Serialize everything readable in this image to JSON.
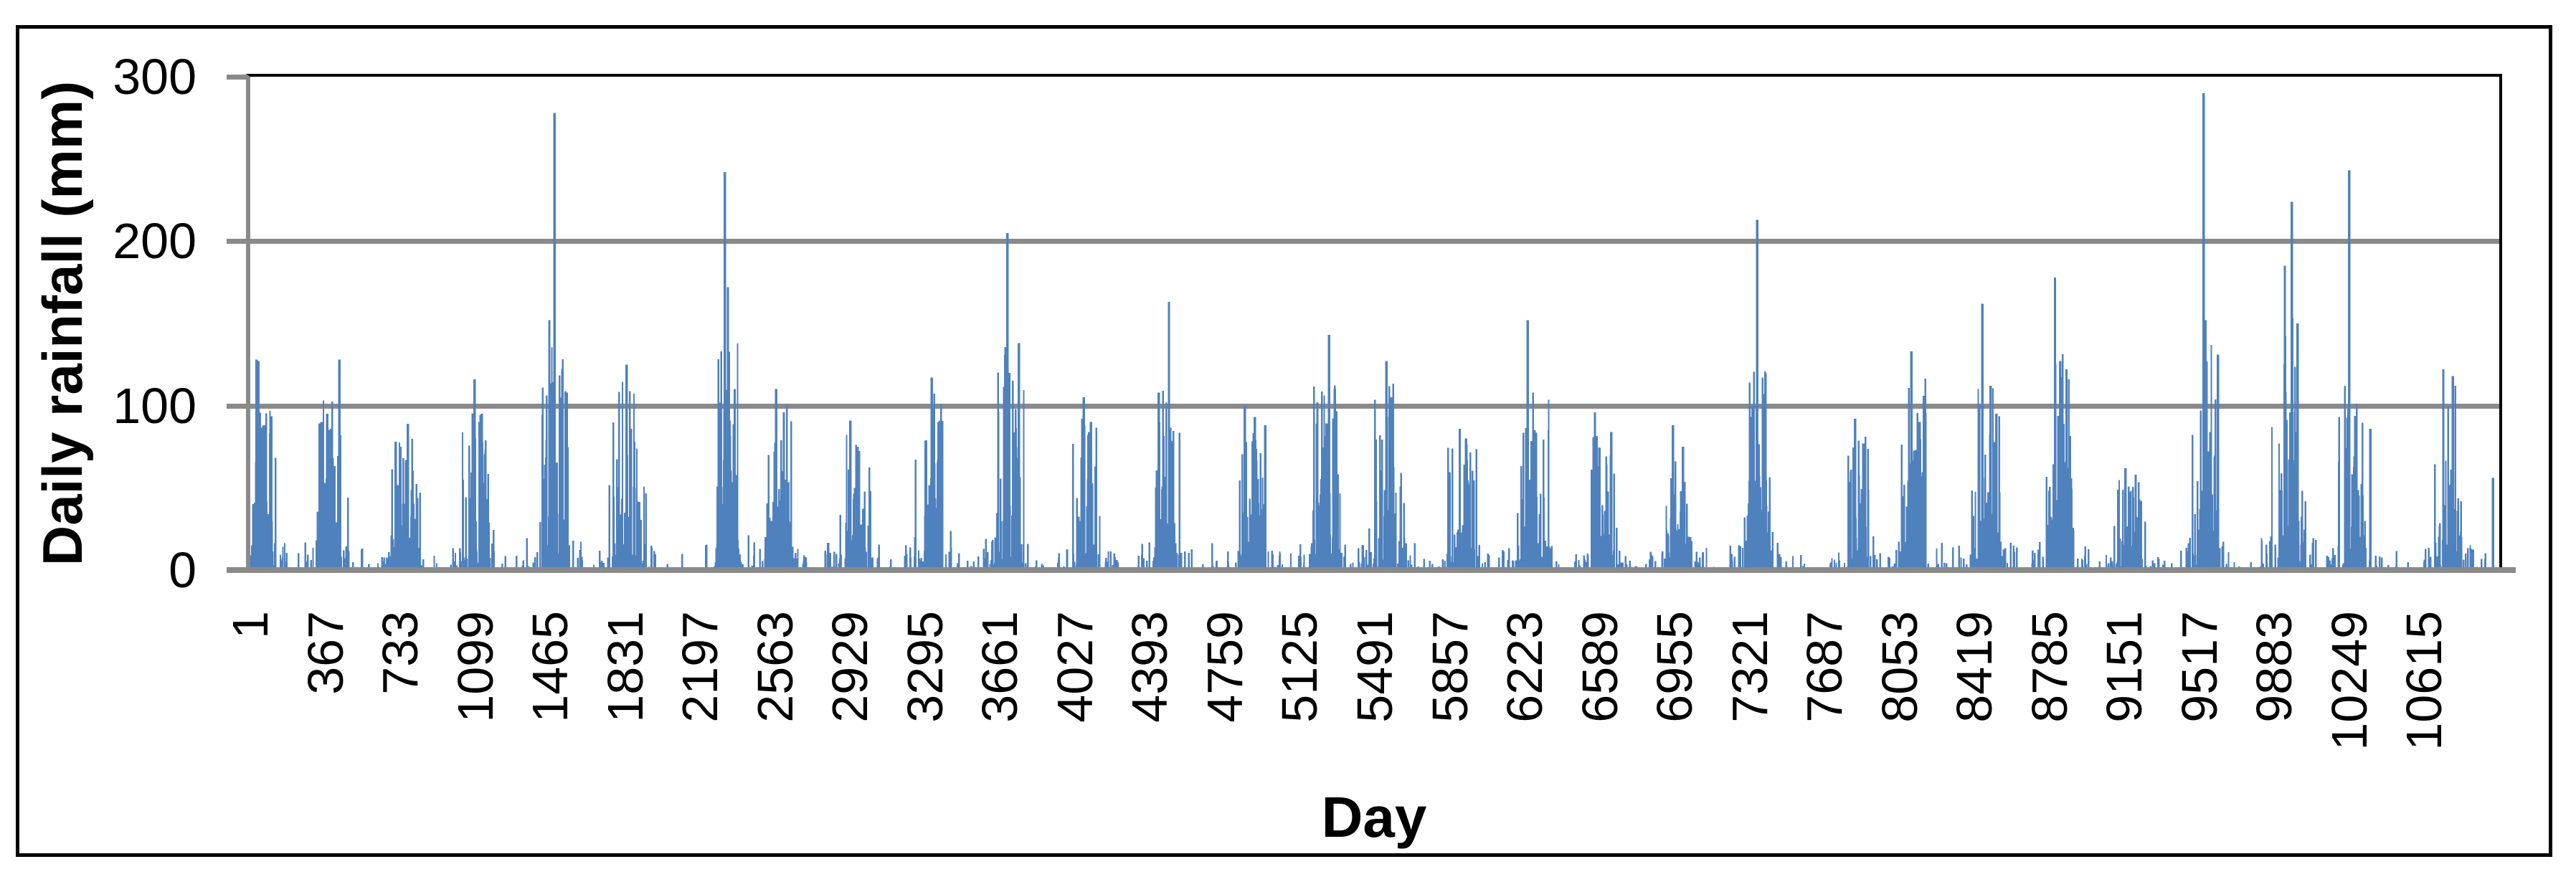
{
  "chart_data": {
    "type": "bar",
    "title": "",
    "xlabel": "Day",
    "ylabel": "Daily rainfall (mm)",
    "series_name": "Daily rainfall",
    "x_range": [
      1,
      10980
    ],
    "ylim": [
      0,
      300
    ],
    "yticks": [
      0,
      100,
      200,
      300
    ],
    "xticks": [
      1,
      367,
      733,
      1099,
      1465,
      1831,
      2197,
      2563,
      2929,
      3295,
      3661,
      4027,
      4393,
      4759,
      5125,
      5491,
      5857,
      6223,
      6589,
      6955,
      7321,
      7687,
      8053,
      8419,
      8785,
      9151,
      9517,
      9883,
      10249,
      10615
    ],
    "grid": "horizontal major gridlines at 100 mm steps",
    "legend": "none",
    "x_tick_label_rotation_deg": -90,
    "sampling_note": "~10980 daily bars; values below estimated from pixels: per-year wet-season cluster envelopes (center day, cluster max mm) plus individually readable major spikes [day, mm].",
    "annual_clusters": [
      [
        45,
        128
      ],
      [
        400,
        130
      ],
      [
        760,
        89
      ],
      [
        1110,
        116
      ],
      [
        1485,
        150
      ],
      [
        1840,
        125
      ],
      [
        2320,
        165
      ],
      [
        2585,
        110
      ],
      [
        2940,
        91
      ],
      [
        3330,
        117
      ],
      [
        3705,
        150
      ],
      [
        4080,
        105
      ],
      [
        4460,
        128
      ],
      [
        4895,
        100
      ],
      [
        5250,
        128
      ],
      [
        5550,
        127
      ],
      [
        5915,
        86
      ],
      [
        6250,
        118
      ],
      [
        6595,
        96
      ],
      [
        6965,
        88
      ],
      [
        7355,
        138
      ],
      [
        7845,
        92
      ],
      [
        8120,
        133
      ],
      [
        8475,
        140
      ],
      [
        8835,
        148
      ],
      [
        9175,
        62
      ],
      [
        9545,
        155
      ],
      [
        9955,
        168
      ],
      [
        10265,
        125
      ],
      [
        10730,
        122
      ]
    ],
    "major_peaks": [
      [
        25,
        128
      ],
      [
        35,
        127
      ],
      [
        66,
        88
      ],
      [
        342,
        90
      ],
      [
        371,
        95
      ],
      [
        430,
        128
      ],
      [
        705,
        78
      ],
      [
        765,
        89
      ],
      [
        1090,
        116
      ],
      [
        1125,
        95
      ],
      [
        1455,
        152
      ],
      [
        1481,
        278
      ],
      [
        1540,
        108
      ],
      [
        1832,
        125
      ],
      [
        1870,
        78
      ],
      [
        2290,
        95
      ],
      [
        2312,
        242
      ],
      [
        2327,
        172
      ],
      [
        2360,
        110
      ],
      [
        2562,
        110
      ],
      [
        2600,
        96
      ],
      [
        2925,
        91
      ],
      [
        2960,
        75
      ],
      [
        3322,
        117
      ],
      [
        3355,
        90
      ],
      [
        3692,
        205
      ],
      [
        3700,
        120
      ],
      [
        3748,
        138
      ],
      [
        4065,
        105
      ],
      [
        4100,
        90
      ],
      [
        4430,
        108
      ],
      [
        4480,
        163
      ],
      [
        4850,
        100
      ],
      [
        4900,
        93
      ],
      [
        4950,
        88
      ],
      [
        5205,
        102
      ],
      [
        5262,
        143
      ],
      [
        5290,
        110
      ],
      [
        5542,
        127
      ],
      [
        5565,
        105
      ],
      [
        5900,
        86
      ],
      [
        5930,
        80
      ],
      [
        6232,
        152
      ],
      [
        6265,
        85
      ],
      [
        6560,
        96
      ],
      [
        6640,
        84
      ],
      [
        6940,
        88
      ],
      [
        6990,
        75
      ],
      [
        7330,
        100
      ],
      [
        7352,
        213
      ],
      [
        7385,
        105
      ],
      [
        7830,
        92
      ],
      [
        7870,
        77
      ],
      [
        8105,
        133
      ],
      [
        8145,
        90
      ],
      [
        8452,
        162
      ],
      [
        8492,
        112
      ],
      [
        8520,
        95
      ],
      [
        8806,
        178
      ],
      [
        8832,
        127
      ],
      [
        8862,
        122
      ],
      [
        9150,
        62
      ],
      [
        9200,
        58
      ],
      [
        9532,
        290
      ],
      [
        9540,
        152
      ],
      [
        9602,
        131
      ],
      [
        9928,
        185
      ],
      [
        9962,
        224
      ],
      [
        9990,
        150
      ],
      [
        10242,
        243
      ],
      [
        10345,
        86
      ],
      [
        10702,
        122
      ],
      [
        10748,
        118
      ],
      [
        10945,
        56
      ]
    ],
    "bar_color": "#4F81BD",
    "gridline_color": "#8A8A8A",
    "axis_color": "#8A8A8A",
    "plot_border_color": "#000000",
    "figure_border_color": "#000000",
    "render_seed": 20110613
  }
}
